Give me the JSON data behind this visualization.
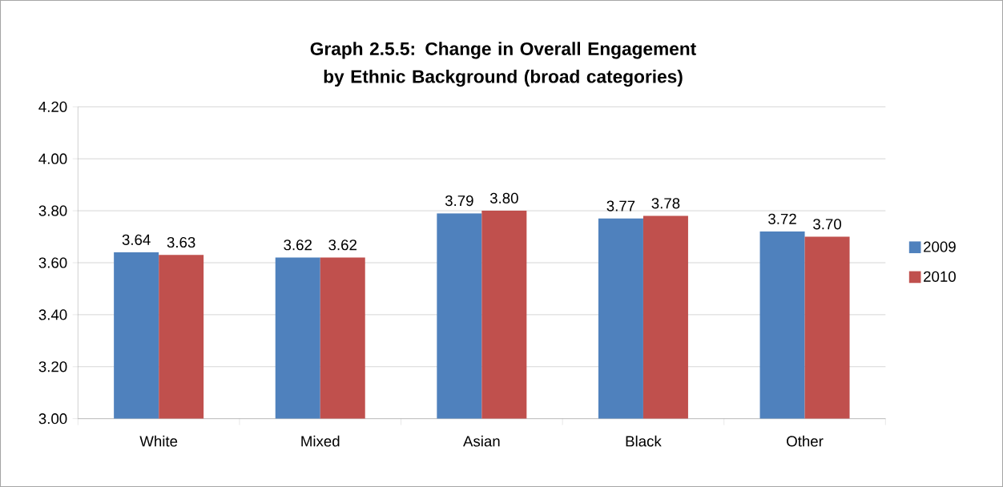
{
  "chart_data": {
    "type": "bar",
    "title": "Graph 2.5.5: Change in Overall Engagement by Ethnic Background (broad categories)",
    "categories": [
      "White",
      "Mixed",
      "Asian",
      "Black",
      "Other"
    ],
    "series": [
      {
        "name": "2009",
        "color": "#4f81bd",
        "values": [
          3.64,
          3.62,
          3.79,
          3.77,
          3.72
        ],
        "value_labels": [
          "3.64",
          "3.62",
          "3.79",
          "3.77",
          "3.72"
        ]
      },
      {
        "name": "2010",
        "color": "#c0504d",
        "values": [
          3.63,
          3.62,
          3.8,
          3.78,
          3.7
        ],
        "value_labels": [
          "3.63",
          "3.62",
          "3.80",
          "3.78",
          "3.70"
        ]
      }
    ],
    "ylim": [
      3.0,
      4.2
    ],
    "yticks": [
      {
        "value": 3.0,
        "label": "3.00"
      },
      {
        "value": 3.2,
        "label": "3.20"
      },
      {
        "value": 3.4,
        "label": "3.40"
      },
      {
        "value": 3.6,
        "label": "3.60"
      },
      {
        "value": 3.8,
        "label": "3.80"
      },
      {
        "value": 4.0,
        "label": "4.00"
      },
      {
        "value": 4.2,
        "label": "4.20"
      }
    ],
    "grid": "y",
    "legend": "right"
  }
}
